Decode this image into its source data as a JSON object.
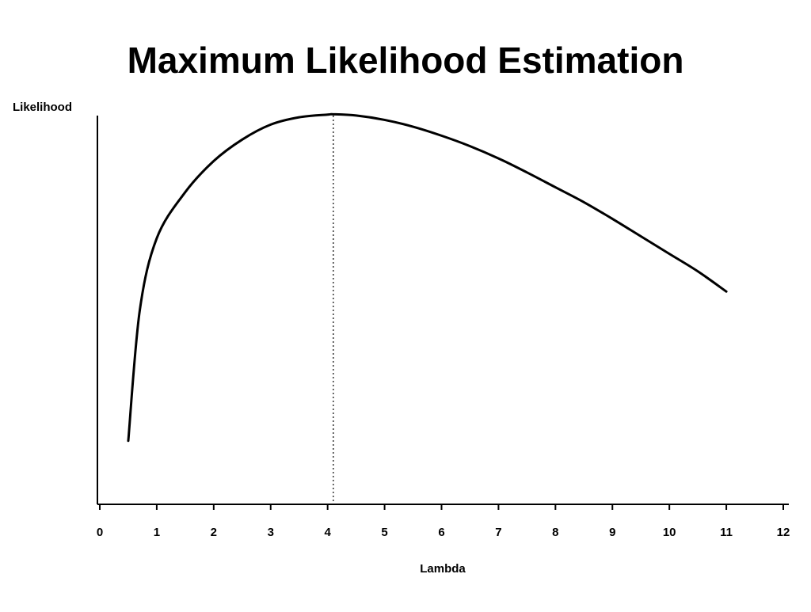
{
  "chart_data": {
    "type": "line",
    "title": "Maximum Likelihood Estimation",
    "xlabel": "Lambda",
    "ylabel": "Likelihood",
    "xlim": [
      0,
      12
    ],
    "ylim": [
      0,
      1
    ],
    "x_ticks": [
      0,
      1,
      2,
      3,
      4,
      5,
      6,
      7,
      8,
      9,
      10,
      11,
      12
    ],
    "x_tick_labels": [
      "0",
      "1",
      "2",
      "3",
      "4",
      "5",
      "6",
      "7",
      "8",
      "9",
      "10",
      "11",
      "12"
    ],
    "y_tick_labels": [],
    "grid": false,
    "legend": "none",
    "mle_marker": {
      "x": 4.1,
      "style": "dotted"
    },
    "series": [
      {
        "x": [
          0.5,
          0.7,
          1.0,
          1.5,
          2.0,
          2.5,
          3.0,
          3.5,
          4.0,
          4.1,
          4.5,
          5.0,
          5.5,
          6.0,
          6.5,
          7.0,
          7.5,
          8.0,
          8.5,
          9.0,
          9.5,
          10.0,
          10.5,
          11.0
        ],
        "values": [
          0.148,
          0.45,
          0.62,
          0.7275,
          0.8,
          0.85,
          0.8849,
          0.902,
          0.9082,
          0.909,
          0.9061,
          0.8959,
          0.88,
          0.8591,
          0.8347,
          0.8061,
          0.7734,
          0.7388,
          0.7041,
          0.6653,
          0.6245,
          0.5837,
          0.5429,
          0.4959
        ]
      }
    ]
  }
}
